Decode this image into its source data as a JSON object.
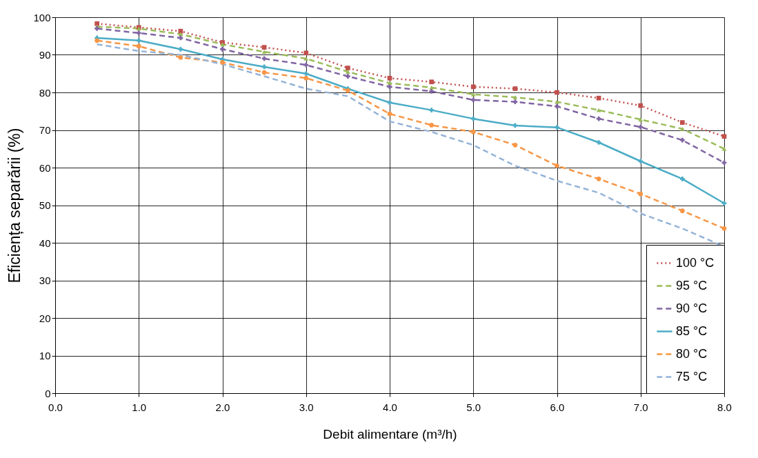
{
  "chart_data": {
    "type": "line",
    "xlabel": "Debit  alimentare (m³/h)",
    "ylabel": "Eficiența  separării  (%)",
    "x": [
      0.5,
      1.0,
      1.5,
      2.0,
      2.5,
      3.0,
      3.5,
      4.0,
      4.5,
      5.0,
      5.5,
      6.0,
      6.5,
      7.0,
      7.5,
      8.0
    ],
    "xlim": [
      0,
      8
    ],
    "xticks": [
      {
        "value": 0,
        "label": "0.0"
      },
      {
        "value": 1,
        "label": "1.0"
      },
      {
        "value": 2,
        "label": "2.0"
      },
      {
        "value": 3,
        "label": "3.0"
      },
      {
        "value": 4,
        "label": "4.0"
      },
      {
        "value": 5,
        "label": "5.0"
      },
      {
        "value": 6,
        "label": "6.0"
      },
      {
        "value": 7,
        "label": "7.0"
      },
      {
        "value": 8,
        "label": "8.0"
      }
    ],
    "ylim": [
      0,
      100
    ],
    "yticks": [
      0,
      10,
      20,
      30,
      40,
      50,
      60,
      70,
      80,
      90,
      100
    ],
    "grid": true,
    "legend": "bottom right",
    "series": [
      {
        "name": "100 °C",
        "color": "#c0504d",
        "line_style": "dotted",
        "marker": "square",
        "values": [
          98.3,
          97.3,
          96.3,
          93.3,
          92,
          90.5,
          86.5,
          83.8,
          82.8,
          81.5,
          81,
          80,
          78.5,
          76.5,
          72,
          68.3
        ]
      },
      {
        "name": "95 °C",
        "color": "#9bbb59",
        "line_style": "dashed",
        "marker": "triangle",
        "values": [
          97.5,
          97,
          95.5,
          92.8,
          90.8,
          89,
          85.5,
          82.5,
          81.3,
          79.5,
          78.7,
          77.5,
          75.3,
          72.8,
          70.3,
          65
        ]
      },
      {
        "name": "90 °C",
        "color": "#8064a2",
        "line_style": "dashed",
        "marker": "cross",
        "values": [
          97,
          95.8,
          94.5,
          91.5,
          89,
          87.3,
          84.3,
          81.5,
          80.3,
          78,
          77.5,
          76.3,
          73,
          70.8,
          67.3,
          61.3
        ]
      },
      {
        "name": "85 °C",
        "color": "#4bacc6",
        "line_style": "solid",
        "marker": "cross",
        "values": [
          94.5,
          93.8,
          91.5,
          88.8,
          86.8,
          85,
          81,
          77.3,
          75.3,
          73,
          71.2,
          70.7,
          66.7,
          61.7,
          57,
          50.5
        ]
      },
      {
        "name": "80 °C",
        "color": "#f79646",
        "line_style": "dashed",
        "marker": "circle",
        "values": [
          93.8,
          92.3,
          89.3,
          88,
          85.3,
          83.8,
          80.5,
          74.3,
          71.3,
          69.5,
          66,
          60.5,
          57,
          53,
          48.5,
          43.8
        ]
      },
      {
        "name": "75 °C",
        "color": "#95b3d7",
        "line_style": "dashed",
        "marker": "none",
        "values": [
          92.8,
          91,
          90,
          87.5,
          84.3,
          81,
          79,
          72.3,
          69.5,
          66,
          60.5,
          56.5,
          53.3,
          47.8,
          43.8,
          39
        ]
      }
    ]
  }
}
